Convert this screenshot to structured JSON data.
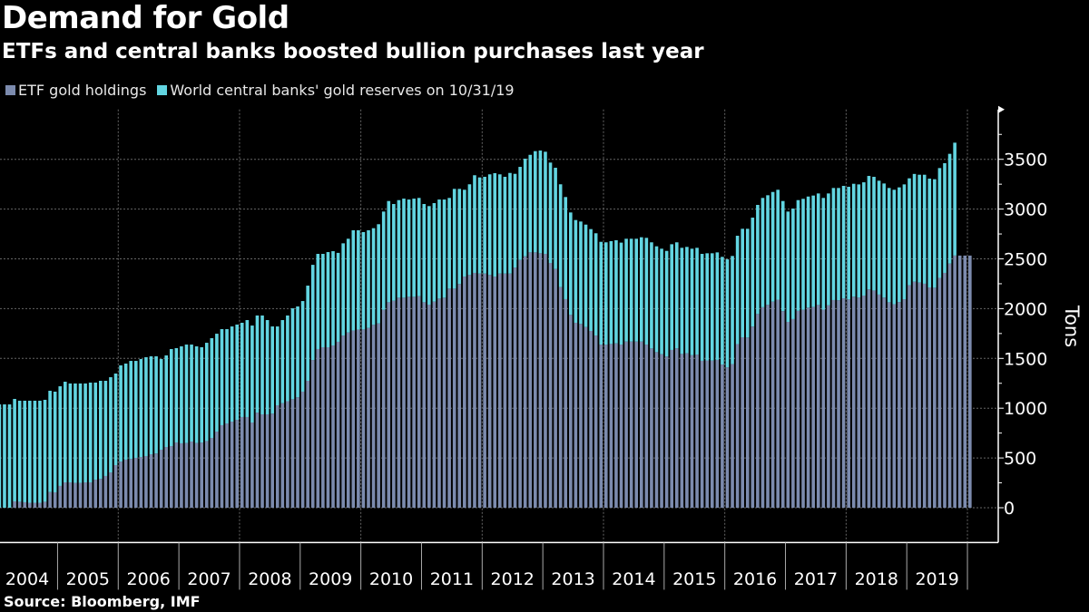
{
  "title": "Demand for Gold",
  "subtitle": "ETFs and central banks boosted bullion purchases last year",
  "source": "Source: Bloomberg, IMF",
  "colors": {
    "background": "#000000",
    "etf": "#7c8bae",
    "central_banks": "#62d5e1",
    "grid": "#666666",
    "axis": "#ffffff"
  },
  "chart_data": {
    "type": "bar",
    "stacked": true,
    "frequency": "monthly",
    "x_start": "2004-01",
    "x_tick_labels": [
      "2004",
      "2005",
      "2006",
      "2007",
      "2008",
      "2009",
      "2010",
      "2011",
      "2012",
      "2013",
      "2014",
      "2015",
      "2016",
      "2017",
      "2018",
      "2019"
    ],
    "ylabel": "Tons",
    "y_axis_side": "right",
    "ylim": [
      -350,
      4000
    ],
    "y_ticks": [
      "0",
      "500",
      "1000",
      "1500",
      "2000",
      "2500",
      "3000",
      "3500"
    ],
    "grid": true,
    "legend": "top-left",
    "series": [
      {
        "name": "ETF gold holdings",
        "color": "#7c8bae",
        "values": [
          0,
          0,
          0,
          64,
          60,
          55,
          50,
          50,
          50,
          60,
          157,
          155,
          219,
          255,
          255,
          250,
          250,
          255,
          255,
          282,
          290,
          319,
          355,
          428,
          464,
          483,
          490,
          501,
          510,
          519,
          537,
          545,
          583,
          610,
          619,
          656,
          647,
          650,
          665,
          650,
          655,
          670,
          701,
          765,
          829,
          847,
          865,
          883,
          911,
          911,
          856,
          956,
          938,
          938,
          945,
          1029,
          1050,
          1070,
          1090,
          1110,
          1166,
          1275,
          1484,
          1594,
          1612,
          1612,
          1630,
          1667,
          1730,
          1760,
          1780,
          1790,
          1791,
          1806,
          1837,
          1851,
          1988,
          2064,
          2079,
          2110,
          2110,
          2119,
          2119,
          2125,
          2064,
          2040,
          2070,
          2101,
          2110,
          2201,
          2201,
          2247,
          2322,
          2338,
          2359,
          2352,
          2352,
          2338,
          2322,
          2352,
          2352,
          2352,
          2413,
          2489,
          2525,
          2565,
          2565,
          2556,
          2550,
          2459,
          2398,
          2216,
          2095,
          1937,
          1858,
          1846,
          1815,
          1776,
          1730,
          1639,
          1639,
          1645,
          1651,
          1639,
          1669,
          1669,
          1669,
          1669,
          1639,
          1600,
          1563,
          1542,
          1520,
          1585,
          1602,
          1545,
          1552,
          1532,
          1539,
          1476,
          1480,
          1478,
          1485,
          1438,
          1411,
          1443,
          1644,
          1712,
          1710,
          1820,
          1946,
          2014,
          2039,
          2070,
          2090,
          1975,
          1867,
          1895,
          1978,
          1989,
          2010,
          2018,
          2037,
          1990,
          2033,
          2086,
          2084,
          2103,
          2092,
          2120,
          2112,
          2131,
          2193,
          2182,
          2141,
          2111,
          2064,
          2044,
          2066,
          2094,
          2235,
          2270,
          2262,
          2250,
          2213,
          2210,
          2309,
          2359,
          2452,
          2533,
          2533,
          2533,
          2533
        ]
      },
      {
        "name": "World central banks' gold reserves on 10/31/19",
        "color": "#62d5e1",
        "values": [
          1038,
          1038,
          1038,
          1029,
          1015,
          1020,
          1025,
          1025,
          1025,
          1024,
          1018,
          1011,
          1001,
          1011,
          993,
          998,
          998,
          993,
          1002,
          975,
          985,
          956,
          956,
          920,
          966,
          965,
          985,
          974,
          984,
          993,
          984,
          976,
          911,
          920,
          975,
          947,
          974,
          989,
          974,
          971,
          957,
          987,
          1002,
          983,
          965,
          947,
          956,
          957,
          947,
          974,
          974,
          975,
          993,
          947,
          876,
          792,
          835,
          861,
          913,
          912,
          910,
          956,
          956,
          956,
          938,
          956,
          947,
          893,
          926,
          942,
          1007,
          997,
          978,
          981,
          971,
          997,
          987,
          1017,
          972,
          980,
          995,
          977,
          986,
          987,
          987,
          990,
          990,
          995,
          986,
          911,
          1002,
          956,
          872,
          911,
          981,
          966,
          972,
          1011,
          1039,
          997,
          972,
          1011,
          941,
          935,
          981,
          980,
          1017,
          1032,
          1026,
          1008,
          1017,
          1033,
          1026,
          1029,
          1032,
          1029,
          1029,
          1023,
          1027,
          1032,
          1027,
          1033,
          1036,
          1024,
          1033,
          1033,
          1033,
          1048,
          1072,
          1066,
          1063,
          1060,
          1060,
          1062,
          1064,
          1066,
          1068,
          1070,
          1072,
          1074,
          1076,
          1078,
          1080,
          1082,
          1084,
          1086,
          1088,
          1090,
          1092,
          1094,
          1096,
          1098,
          1100,
          1102,
          1104,
          1106,
          1108,
          1110,
          1112,
          1114,
          1116,
          1118,
          1120,
          1122,
          1124,
          1126,
          1128,
          1130,
          1132,
          1134,
          1136,
          1138,
          1140,
          1142,
          1144,
          1146,
          1148,
          1150,
          1152,
          1154,
          1074,
          1083,
          1083,
          1095,
          1093,
          1090,
          1103,
          1102,
          1103,
          1134
        ]
      }
    ]
  }
}
